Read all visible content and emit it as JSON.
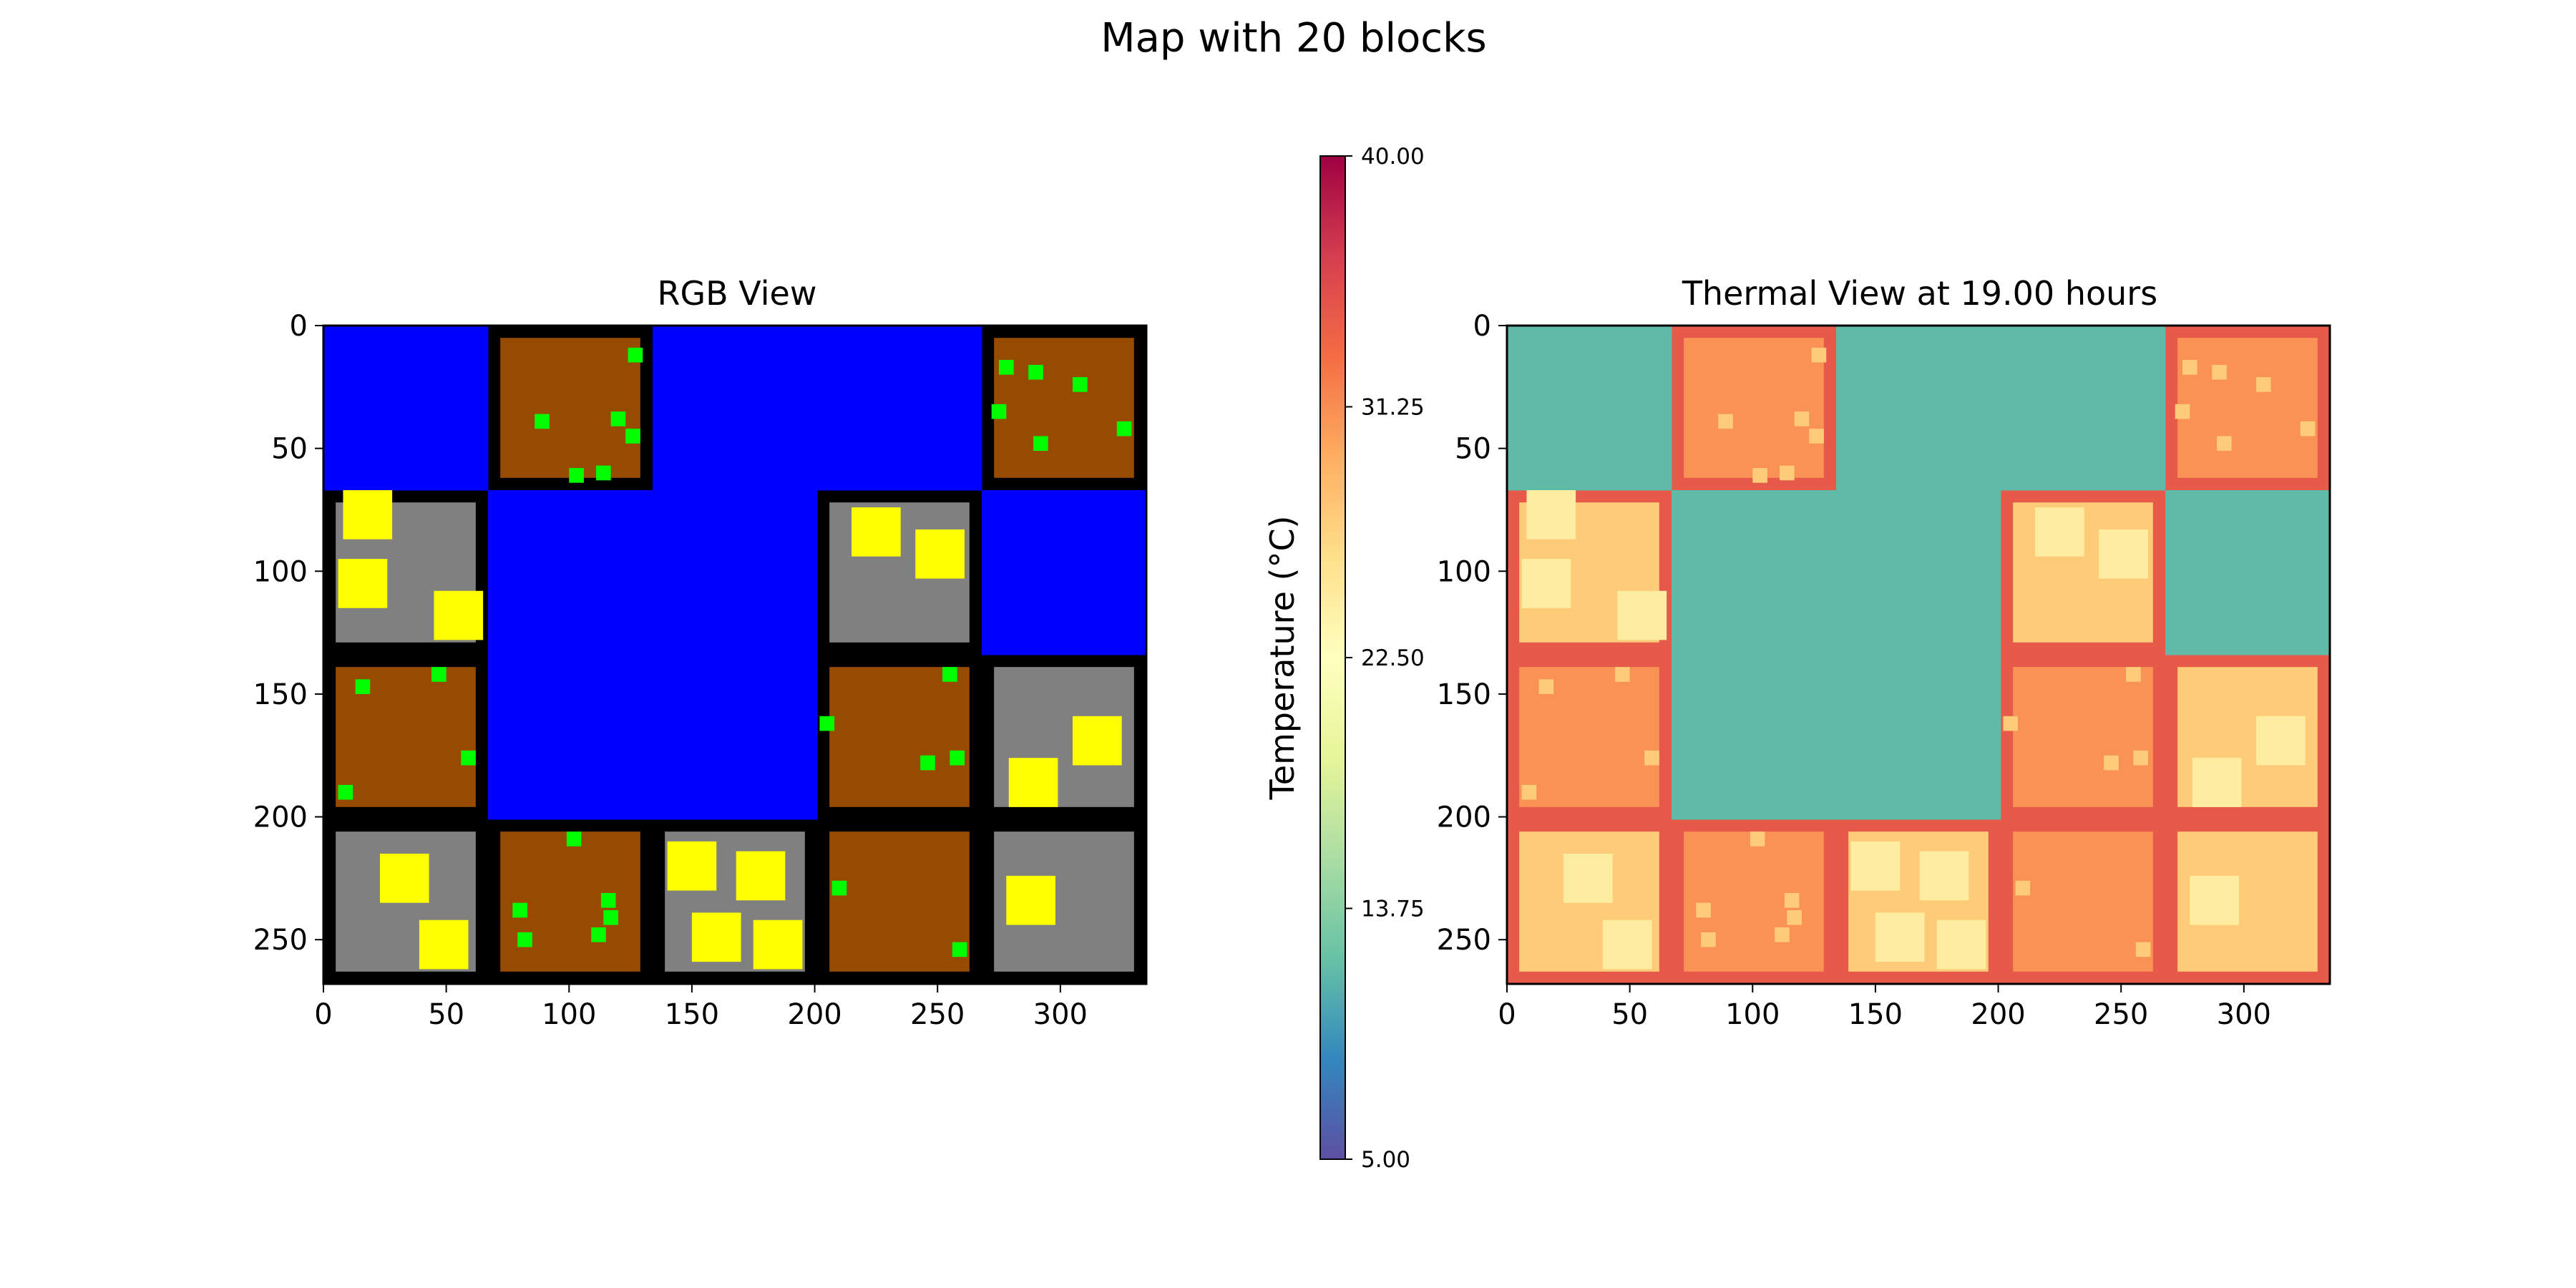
{
  "figure": {
    "title": "Map with 20 blocks"
  },
  "colors": {
    "road": "#000000",
    "water": "#0000ff",
    "soil": "#964b00",
    "building_lot": "#808080",
    "building": "#ffff00",
    "vegetation": "#00ff00",
    "thermal_water": "#4fa7b0",
    "thermal_road": "#f46d43",
    "thermal_soil": "#fdae61",
    "thermal_building_lot": "#fee08b",
    "thermal_building": "#ffffbf",
    "thermal_vegetation": "#fee08b"
  },
  "chart_data": [
    {
      "type": "heatmap",
      "title": "RGB View",
      "xlabel": "",
      "ylabel": "",
      "xlim": [
        0,
        335
      ],
      "ylim": [
        268,
        0
      ],
      "xticks": [
        0,
        50,
        100,
        150,
        200,
        250,
        300
      ],
      "yticks": [
        0,
        50,
        100,
        150,
        200,
        250
      ],
      "road_gap": 5,
      "blocks": [
        {
          "row": 0,
          "x": [
            0,
            67
          ],
          "y": [
            0,
            67
          ],
          "kind": "water"
        },
        {
          "row": 0,
          "x": [
            67,
            134
          ],
          "y": [
            0,
            67
          ],
          "kind": "soil"
        },
        {
          "row": 0,
          "x": [
            134,
            201
          ],
          "y": [
            0,
            67
          ],
          "kind": "water"
        },
        {
          "row": 0,
          "x": [
            201,
            268
          ],
          "y": [
            0,
            67
          ],
          "kind": "water"
        },
        {
          "row": 0,
          "x": [
            268,
            335
          ],
          "y": [
            0,
            67
          ],
          "kind": "soil"
        },
        {
          "row": 1,
          "x": [
            0,
            67
          ],
          "y": [
            67,
            134
          ],
          "kind": "building_lot"
        },
        {
          "row": 1,
          "x": [
            67,
            134
          ],
          "y": [
            67,
            134
          ],
          "kind": "water"
        },
        {
          "row": 1,
          "x": [
            134,
            201
          ],
          "y": [
            67,
            134
          ],
          "kind": "water"
        },
        {
          "row": 1,
          "x": [
            201,
            268
          ],
          "y": [
            67,
            134
          ],
          "kind": "building_lot"
        },
        {
          "row": 1,
          "x": [
            268,
            335
          ],
          "y": [
            67,
            134
          ],
          "kind": "water"
        },
        {
          "row": 2,
          "x": [
            0,
            67
          ],
          "y": [
            134,
            201
          ],
          "kind": "soil"
        },
        {
          "row": 2,
          "x": [
            67,
            134
          ],
          "y": [
            134,
            201
          ],
          "kind": "water"
        },
        {
          "row": 2,
          "x": [
            134,
            201
          ],
          "y": [
            134,
            201
          ],
          "kind": "water"
        },
        {
          "row": 2,
          "x": [
            201,
            268
          ],
          "y": [
            134,
            201
          ],
          "kind": "soil"
        },
        {
          "row": 2,
          "x": [
            268,
            335
          ],
          "y": [
            134,
            201
          ],
          "kind": "building_lot"
        },
        {
          "row": 3,
          "x": [
            0,
            67
          ],
          "y": [
            201,
            268
          ],
          "kind": "building_lot"
        },
        {
          "row": 3,
          "x": [
            67,
            134
          ],
          "y": [
            201,
            268
          ],
          "kind": "soil"
        },
        {
          "row": 3,
          "x": [
            134,
            201
          ],
          "y": [
            201,
            268
          ],
          "kind": "building_lot"
        },
        {
          "row": 3,
          "x": [
            201,
            268
          ],
          "y": [
            201,
            268
          ],
          "kind": "soil"
        },
        {
          "row": 3,
          "x": [
            268,
            335
          ],
          "y": [
            201,
            268
          ],
          "kind": "building_lot"
        }
      ],
      "buildings": [
        {
          "x": [
            8,
            28
          ],
          "y": [
            67,
            87
          ]
        },
        {
          "x": [
            6,
            26
          ],
          "y": [
            95,
            115
          ]
        },
        {
          "x": [
            45,
            65
          ],
          "y": [
            108,
            128
          ]
        },
        {
          "x": [
            215,
            235
          ],
          "y": [
            74,
            94
          ]
        },
        {
          "x": [
            241,
            261
          ],
          "y": [
            83,
            103
          ]
        },
        {
          "x": [
            305,
            325
          ],
          "y": [
            159,
            179
          ]
        },
        {
          "x": [
            279,
            299
          ],
          "y": [
            176,
            196
          ]
        },
        {
          "x": [
            23,
            43
          ],
          "y": [
            215,
            235
          ]
        },
        {
          "x": [
            39,
            59
          ],
          "y": [
            242,
            262
          ]
        },
        {
          "x": [
            140,
            160
          ],
          "y": [
            210,
            230
          ]
        },
        {
          "x": [
            168,
            188
          ],
          "y": [
            214,
            234
          ]
        },
        {
          "x": [
            150,
            170
          ],
          "y": [
            239,
            259
          ]
        },
        {
          "x": [
            175,
            195
          ],
          "y": [
            242,
            262
          ]
        },
        {
          "x": [
            278,
            298
          ],
          "y": [
            224,
            244
          ]
        }
      ],
      "vegetation": [
        [
          127,
          12
        ],
        [
          89,
          39
        ],
        [
          120,
          38
        ],
        [
          126,
          45
        ],
        [
          103,
          61
        ],
        [
          114,
          60
        ],
        [
          278,
          17
        ],
        [
          290,
          19
        ],
        [
          308,
          24
        ],
        [
          275,
          35
        ],
        [
          292,
          48
        ],
        [
          326,
          42
        ],
        [
          16,
          147
        ],
        [
          47,
          142
        ],
        [
          59,
          176
        ],
        [
          9,
          190
        ],
        [
          205,
          162
        ],
        [
          255,
          142
        ],
        [
          246,
          178
        ],
        [
          258,
          176
        ],
        [
          102,
          209
        ],
        [
          80,
          238
        ],
        [
          116,
          234
        ],
        [
          117,
          241
        ],
        [
          82,
          250
        ],
        [
          112,
          248
        ],
        [
          210,
          229
        ],
        [
          259,
          254
        ]
      ]
    },
    {
      "type": "heatmap",
      "title": "Thermal View at 19.00 hours",
      "xlabel": "",
      "ylabel": "",
      "xlim": [
        0,
        335
      ],
      "ylim": [
        268,
        0
      ],
      "xticks": [
        0,
        50,
        100,
        150,
        200,
        250,
        300
      ],
      "yticks": [
        0,
        50,
        100,
        150,
        200,
        250
      ],
      "colormap": "Spectral_r",
      "temperature_by_kind": {
        "water": 11.5,
        "road": 34.5,
        "soil": 31.0,
        "building_lot": 27.5,
        "building": 24.5,
        "vegetation": 27.5
      }
    }
  ],
  "colorbar": {
    "label": "Temperature (°C)",
    "min": 5.0,
    "max": 40.0,
    "tick_labels": [
      "40.00",
      "31.25",
      "22.50",
      "13.75",
      "5.00"
    ],
    "tick_values": [
      40.0,
      31.25,
      22.5,
      13.75,
      5.0
    ],
    "colormap": "Spectral_r",
    "stops": [
      "#5e4fa2",
      "#3288bd",
      "#66c2a5",
      "#abdda4",
      "#e6f598",
      "#ffffbf",
      "#fee08b",
      "#fdae61",
      "#f46d43",
      "#d53e4f",
      "#9e0142"
    ]
  }
}
